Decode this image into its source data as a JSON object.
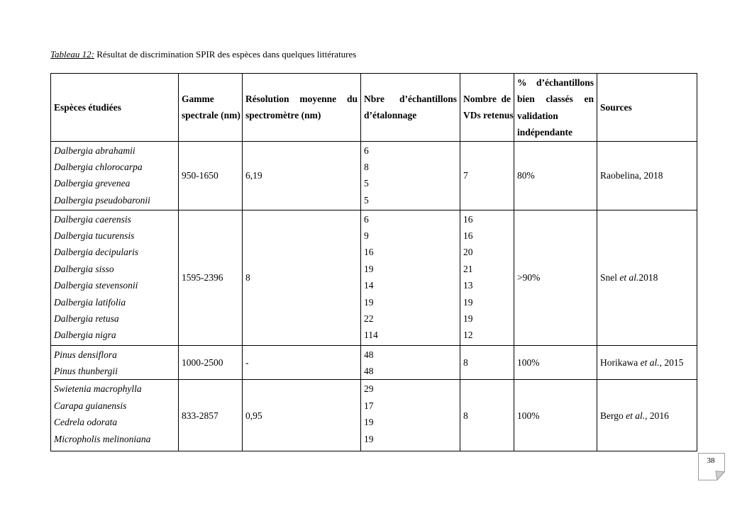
{
  "document": {
    "title": {
      "label": "Tableau 12:",
      "text": " Résultat de discrimination SPIR des espèces dans quelques littératures"
    },
    "page_number": "38"
  },
  "table": {
    "headers": [
      {
        "id": "species",
        "lines": [
          "Espèces étudiées"
        ]
      },
      {
        "id": "spectral-range",
        "lines": [
          "Gamme",
          "spectrale (nm)"
        ]
      },
      {
        "id": "resolution",
        "lines": [
          "Résolution moyenne du",
          "spectromètre (nm)"
        ]
      },
      {
        "id": "calibration-samples",
        "lines": [
          "Nbre d’échantillons",
          "d’étalonnage"
        ]
      },
      {
        "id": "vds-retained",
        "lines": [
          "Nombre de",
          "VDs retenus"
        ]
      },
      {
        "id": "classification-pct",
        "lines": [
          "% d’échantillons",
          "bien classés en",
          "validation",
          "indépendante"
        ]
      },
      {
        "id": "sources",
        "lines": [
          "Sources"
        ]
      }
    ],
    "rows": [
      {
        "species": [
          "Dalbergia abrahamii",
          "Dalbergia chlorocarpa",
          "Dalbergia grevenea",
          "Dalbergia pseudobaronii"
        ],
        "spectral_range": "950-1650",
        "resolution": "6,19",
        "calibration_samples": [
          "6",
          "8",
          "5",
          "5"
        ],
        "vds": [
          "7"
        ],
        "classification_pct": "80%",
        "source": [
          {
            "text": "Raobelina, 2018",
            "italic": false
          }
        ]
      },
      {
        "species": [
          "Dalbergia caerensis",
          "Dalbergia tucurensis",
          "Dalbergia decipularis",
          "Dalbergia sisso",
          "Dalbergia stevensonii",
          "Dalbergia latifolia",
          "Dalbergia retusa",
          "Dalbergia nigra"
        ],
        "spectral_range": "1595-2396",
        "resolution": "8",
        "calibration_samples": [
          "6",
          "9",
          "16",
          "19",
          "14",
          "19",
          "22",
          "114"
        ],
        "vds": [
          "16",
          "16",
          "20",
          "21",
          "13",
          "19",
          "19",
          "12"
        ],
        "classification_pct": ">90%",
        "source": [
          {
            "text": "Snel ",
            "italic": false
          },
          {
            "text": "et al.",
            "italic": true
          },
          {
            "text": "2018",
            "italic": false
          }
        ]
      },
      {
        "species": [
          "Pinus densiflora",
          "Pinus thunbergii"
        ],
        "spectral_range": "1000-2500",
        "resolution": "-",
        "calibration_samples": [
          "48",
          "48"
        ],
        "vds": [
          "8"
        ],
        "classification_pct": "100%",
        "source": [
          {
            "text": "Horikawa ",
            "italic": false
          },
          {
            "text": "et al.",
            "italic": true
          },
          {
            "text": ", 2015",
            "italic": false
          }
        ]
      },
      {
        "species": [
          "Swietenia macrophylla",
          "Carapa guianensis",
          "Cedrela odorata",
          "Micropholis melinoniana"
        ],
        "spectral_range": "833-2857",
        "resolution": "0,95",
        "calibration_samples": [
          "29",
          "17",
          "19",
          "19"
        ],
        "vds": [
          "8"
        ],
        "classification_pct": "100%",
        "source": [
          {
            "text": "Bergo ",
            "italic": false
          },
          {
            "text": "et al.",
            "italic": true
          },
          {
            "text": ", 2016",
            "italic": false
          }
        ]
      }
    ]
  }
}
